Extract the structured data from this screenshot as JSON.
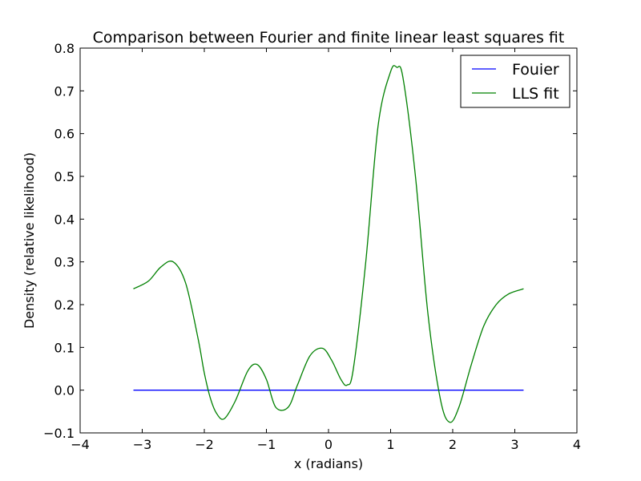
{
  "chart_data": {
    "type": "line",
    "title": "Comparison between Fourier and finite linear least squares fit",
    "xlabel": "x (radians)",
    "ylabel": "Density (relative likelihood)",
    "xlim": [
      -4,
      4
    ],
    "ylim": [
      -0.1,
      0.8
    ],
    "xticks": [
      -4,
      -3,
      -2,
      -1,
      0,
      1,
      2,
      3,
      4
    ],
    "yticks": [
      -0.1,
      0.0,
      0.1,
      0.2,
      0.3,
      0.4,
      0.5,
      0.6,
      0.7,
      0.8
    ],
    "xtick_labels": [
      "−4",
      "−3",
      "−2",
      "−1",
      "0",
      "1",
      "2",
      "3",
      "4"
    ],
    "ytick_labels": [
      "−0.1",
      "0.0",
      "0.1",
      "0.2",
      "0.3",
      "0.4",
      "0.5",
      "0.6",
      "0.7",
      "0.8"
    ],
    "grid": false,
    "legend_position": "top-right",
    "series": [
      {
        "name": "Fouier",
        "color": "#0000ff",
        "x": [
          -3.1416,
          3.1416
        ],
        "y": [
          0.0,
          0.0
        ]
      },
      {
        "name": "LLS fit",
        "color": "#008000",
        "x": [
          -3.1416,
          -2.9,
          -2.7,
          -2.5,
          -2.3,
          -2.1,
          -2.0,
          -1.9,
          -1.8,
          -1.68,
          -1.5,
          -1.3,
          -1.15,
          -1.0,
          -0.85,
          -0.65,
          -0.5,
          -0.3,
          -0.1,
          0.05,
          0.2,
          0.3,
          0.4,
          0.6,
          0.8,
          1.0,
          1.1,
          1.2,
          1.4,
          1.6,
          1.8,
          1.95,
          2.1,
          2.3,
          2.5,
          2.7,
          2.9,
          3.1416
        ],
        "y": [
          0.237,
          0.255,
          0.288,
          0.3,
          0.25,
          0.12,
          0.04,
          -0.02,
          -0.055,
          -0.067,
          -0.025,
          0.045,
          0.06,
          0.025,
          -0.04,
          -0.04,
          0.012,
          0.08,
          0.098,
          0.07,
          0.025,
          0.012,
          0.05,
          0.3,
          0.62,
          0.745,
          0.755,
          0.73,
          0.5,
          0.18,
          -0.02,
          -0.075,
          -0.04,
          0.06,
          0.15,
          0.2,
          0.225,
          0.237
        ]
      }
    ]
  }
}
